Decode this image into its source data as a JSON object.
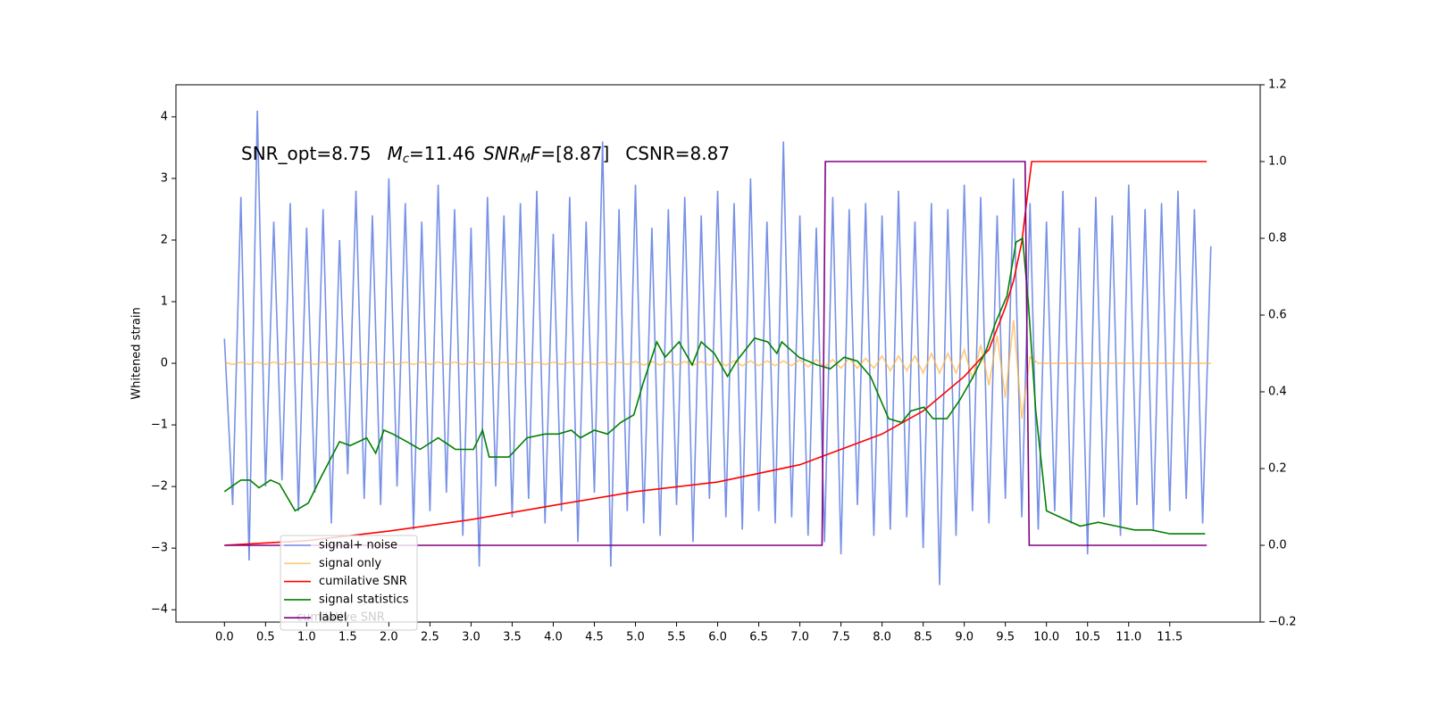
{
  "chart_data": {
    "type": "line",
    "annotation": [
      "SNR_opt=8.75",
      "M",
      "c",
      "=11.46",
      "SNR",
      "M",
      "F",
      "=[8.87]",
      "CSNR=8.87"
    ],
    "ylabel": "Whitened strain",
    "x": [
      0,
      0.1,
      0.2,
      0.3,
      0.4,
      0.5,
      0.6,
      0.7,
      0.8,
      0.9,
      1,
      1.1,
      1.2,
      1.3,
      1.4,
      1.5,
      1.6,
      1.7,
      1.8,
      1.9,
      2,
      2.1,
      2.2,
      2.3,
      2.4,
      2.5,
      2.6,
      2.7,
      2.8,
      2.9,
      3,
      3.1,
      3.2,
      3.3,
      3.4,
      3.5,
      3.6,
      3.7,
      3.8,
      3.9,
      4,
      4.1,
      4.2,
      4.3,
      4.4,
      4.5,
      4.6,
      4.7,
      4.8,
      4.9,
      5,
      5.1,
      5.2,
      5.3,
      5.4,
      5.5,
      5.6,
      5.7,
      5.8,
      5.9,
      6,
      6.1,
      6.2,
      6.3,
      6.4,
      6.5,
      6.6,
      6.7,
      6.8,
      6.9,
      7,
      7.1,
      7.2,
      7.3,
      7.4,
      7.5,
      7.6,
      7.7,
      7.8,
      7.9,
      8,
      8.1,
      8.2,
      8.3,
      8.4,
      8.5,
      8.6,
      8.7,
      8.8,
      8.9,
      9,
      9.1,
      9.2,
      9.3,
      9.4,
      9.5,
      9.6,
      9.7,
      9.8,
      9.9,
      10,
      10.1,
      10.2,
      10.3,
      10.4,
      10.5,
      10.6,
      10.7,
      10.8,
      10.9,
      11,
      11.1,
      11.2,
      11.3,
      11.4,
      11.5,
      11.6,
      11.7,
      11.8,
      11.9,
      12
    ],
    "series": [
      {
        "name": "signal+ noise",
        "color": "#7690e6",
        "axis": "y",
        "values": [
          0.4,
          -2.3,
          2.7,
          -3.2,
          4.1,
          -2.0,
          2.3,
          -1.9,
          2.6,
          -2.4,
          2.2,
          -2.1,
          2.5,
          -2.6,
          2.0,
          -1.8,
          2.8,
          -2.2,
          2.4,
          -2.3,
          3.0,
          -2.0,
          2.6,
          -2.7,
          2.3,
          -2.4,
          2.9,
          -2.1,
          2.5,
          -2.8,
          2.2,
          -3.3,
          2.7,
          -2.0,
          2.4,
          -2.5,
          2.6,
          -2.2,
          2.8,
          -2.6,
          2.1,
          -2.4,
          2.7,
          -2.9,
          2.3,
          -2.1,
          3.6,
          -3.3,
          2.5,
          -2.4,
          2.9,
          -2.6,
          2.2,
          -2.8,
          2.5,
          -2.3,
          2.7,
          -2.9,
          2.4,
          -2.2,
          2.8,
          -2.5,
          2.6,
          -2.7,
          3.0,
          -2.4,
          2.3,
          -2.6,
          3.6,
          -2.5,
          2.4,
          -2.8,
          2.2,
          -2.9,
          2.7,
          -3.1,
          2.5,
          -2.3,
          2.6,
          -2.8,
          2.4,
          -2.7,
          2.8,
          -2.5,
          2.3,
          -3.0,
          2.6,
          -3.6,
          2.5,
          -2.8,
          2.9,
          -2.4,
          2.7,
          -2.6,
          2.4,
          -2.2,
          3.0,
          -2.5,
          2.6,
          -2.7,
          2.3,
          -2.4,
          2.8,
          -2.6,
          2.2,
          -3.1,
          2.7,
          -2.5,
          2.4,
          -2.8,
          2.9,
          -2.3,
          2.5,
          -2.7,
          2.6,
          -2.4,
          2.8,
          -2.2,
          2.5,
          -2.6,
          1.9
        ]
      },
      {
        "name": "signal only",
        "color": "#ffb43c",
        "axis": "y",
        "values": [
          0.02,
          -0.02,
          0.02,
          -0.02,
          0.02,
          -0.02,
          0.02,
          -0.02,
          0.02,
          -0.02,
          0.02,
          -0.02,
          0.02,
          -0.02,
          0.02,
          -0.02,
          0.02,
          -0.02,
          0.02,
          -0.02,
          0.02,
          -0.02,
          0.02,
          -0.02,
          0.02,
          -0.02,
          0.02,
          -0.02,
          0.02,
          -0.02,
          0.02,
          -0.02,
          0.02,
          -0.02,
          0.02,
          -0.02,
          0.02,
          -0.02,
          0.02,
          -0.02,
          0.02,
          -0.02,
          0.02,
          -0.02,
          0.02,
          -0.02,
          0.02,
          -0.02,
          0.02,
          -0.02,
          0.03,
          -0.03,
          0.03,
          -0.03,
          0.03,
          -0.03,
          0.03,
          -0.03,
          0.03,
          -0.03,
          0.04,
          -0.04,
          0.04,
          -0.04,
          0.04,
          -0.04,
          0.04,
          -0.04,
          0.04,
          -0.04,
          0.06,
          -0.06,
          0.06,
          -0.06,
          0.06,
          -0.08,
          0.08,
          -0.08,
          0.08,
          -0.08,
          0.12,
          -0.12,
          0.12,
          -0.12,
          0.12,
          -0.16,
          0.16,
          -0.16,
          0.16,
          -0.16,
          0.22,
          -0.26,
          0.3,
          -0.36,
          0.45,
          -0.56,
          0.7,
          -0.9,
          0.1,
          0,
          0,
          0,
          0,
          0,
          0,
          0,
          0,
          0,
          0,
          0,
          0,
          0,
          0,
          0,
          0,
          0,
          0,
          0,
          0,
          0,
          0
        ]
      },
      {
        "name": "cumilative SNR",
        "color": "#ff0000",
        "axis": "y2",
        "x": [
          0,
          1,
          2,
          3,
          4,
          5,
          6,
          7,
          7.5,
          8,
          8.5,
          9,
          9.3,
          9.5,
          9.6,
          9.7,
          9.75,
          9.82,
          11.95
        ],
        "values": [
          0,
          0.012,
          0.037,
          0.067,
          0.104,
          0.14,
          0.165,
          0.21,
          0.25,
          0.29,
          0.35,
          0.44,
          0.51,
          0.62,
          0.69,
          0.79,
          0.88,
          1.0,
          1.0
        ]
      },
      {
        "name": "signal statistics",
        "color": "#008000",
        "axis": "y2",
        "x": [
          0,
          0.2,
          0.31,
          0.42,
          0.56,
          0.67,
          0.86,
          1.02,
          1.18,
          1.4,
          1.53,
          1.73,
          1.84,
          1.94,
          2.05,
          2.22,
          2.38,
          2.6,
          2.81,
          3.03,
          3.14,
          3.22,
          3.46,
          3.68,
          3.9,
          4.06,
          4.22,
          4.33,
          4.5,
          4.66,
          4.82,
          4.98,
          5.09,
          5.26,
          5.36,
          5.53,
          5.69,
          5.8,
          5.96,
          6.12,
          6.23,
          6.45,
          6.61,
          6.72,
          6.78,
          6.99,
          7.21,
          7.37,
          7.54,
          7.7,
          7.86,
          8.08,
          8.24,
          8.35,
          8.51,
          8.62,
          8.79,
          8.95,
          9.11,
          9.27,
          9.38,
          9.52,
          9.63,
          9.71,
          9.78,
          9.87,
          10.0,
          10.2,
          10.41,
          10.63,
          10.85,
          11.07,
          11.28,
          11.5,
          11.66,
          11.83,
          11.93
        ],
        "values": [
          0.14,
          0.17,
          0.17,
          0.15,
          0.17,
          0.16,
          0.09,
          0.11,
          0.18,
          0.27,
          0.26,
          0.28,
          0.24,
          0.3,
          0.29,
          0.27,
          0.25,
          0.28,
          0.25,
          0.25,
          0.3,
          0.23,
          0.23,
          0.28,
          0.29,
          0.29,
          0.3,
          0.28,
          0.3,
          0.29,
          0.32,
          0.34,
          0.42,
          0.53,
          0.49,
          0.53,
          0.47,
          0.53,
          0.5,
          0.44,
          0.48,
          0.54,
          0.53,
          0.5,
          0.53,
          0.49,
          0.47,
          0.46,
          0.49,
          0.48,
          0.44,
          0.33,
          0.32,
          0.35,
          0.36,
          0.33,
          0.33,
          0.38,
          0.44,
          0.51,
          0.58,
          0.65,
          0.79,
          0.8,
          0.63,
          0.35,
          0.09,
          0.07,
          0.05,
          0.06,
          0.05,
          0.04,
          0.04,
          0.03,
          0.03,
          0.03,
          0.03
        ]
      },
      {
        "name": "label",
        "color": "#800080",
        "axis": "y2",
        "x": [
          0,
          7.27,
          7.31,
          9.74,
          9.79,
          11.95
        ],
        "values": [
          0,
          0,
          1,
          1,
          0,
          0
        ]
      }
    ],
    "xlim": [
      -0.59,
      12.6
    ],
    "xticks": [
      {
        "value": 0,
        "label": "0.0"
      },
      0.5,
      {
        "value": 1,
        "label": "1.0"
      },
      1.5,
      {
        "value": 2,
        "label": "2.0"
      },
      2.5,
      {
        "value": 3,
        "label": "3.0"
      },
      3.5,
      {
        "value": 4,
        "label": "4.0"
      },
      4.5,
      {
        "value": 5,
        "label": "5.0"
      },
      5.5,
      {
        "value": 6,
        "label": "6.0"
      },
      6.5,
      {
        "value": 7,
        "label": "7.0"
      },
      7.5,
      {
        "value": 8,
        "label": "8.0"
      },
      8.5,
      {
        "value": 9,
        "label": "9.0"
      },
      9.5,
      {
        "value": 10,
        "label": "10.0"
      },
      10.5,
      {
        "value": 11,
        "label": "11.0"
      },
      11.5
    ],
    "ylim": [
      -4.2,
      4.52
    ],
    "yticks": [
      {
        "value": -4,
        "label": "−4"
      },
      {
        "value": -3,
        "label": "−3"
      },
      {
        "value": -2,
        "label": "−2"
      },
      {
        "value": -1,
        "label": "−1"
      },
      0,
      1,
      2,
      3,
      4
    ],
    "y2lim": [
      -0.2,
      1.2
    ],
    "y2ticks": [
      {
        "value": -0.2,
        "label": "−0.2"
      },
      {
        "value": 0,
        "label": "0.0"
      },
      0.2,
      0.4,
      0.6,
      0.8,
      {
        "value": 1,
        "label": "1.0"
      },
      1.2
    ],
    "legend": "lower left"
  }
}
